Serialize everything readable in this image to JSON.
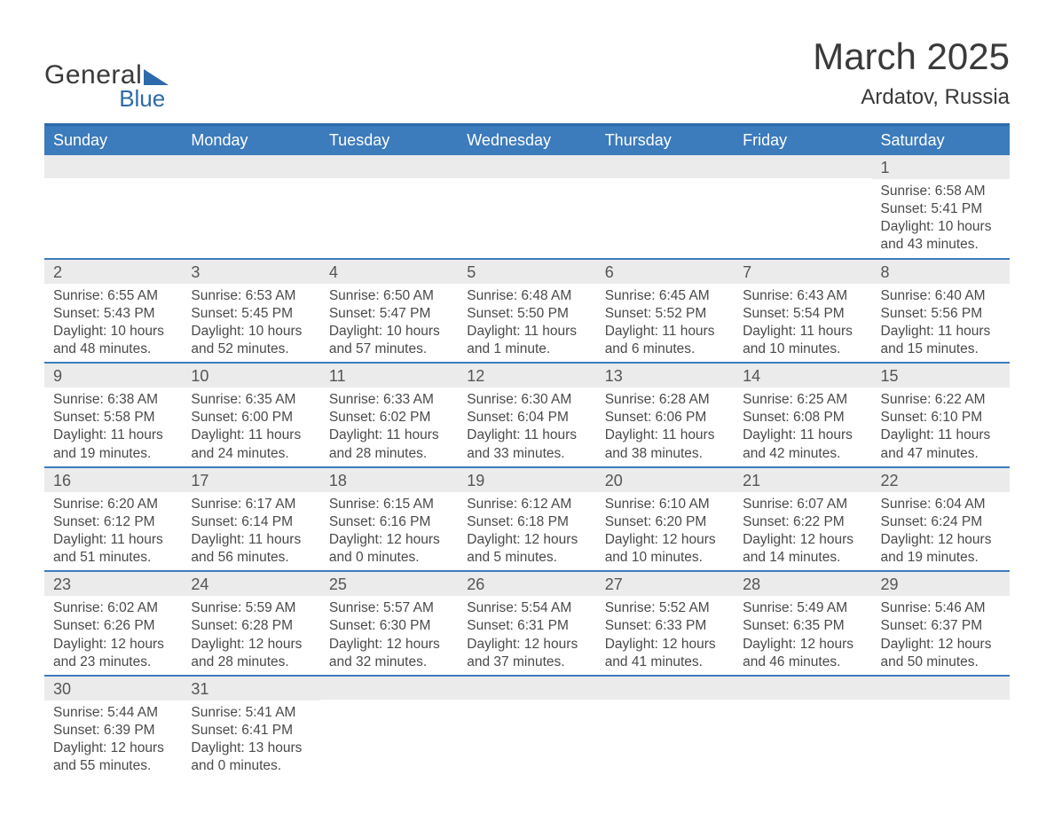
{
  "logo": {
    "text_general": "General",
    "text_blue": "Blue",
    "general_color": "#3a3a3a",
    "blue_color": "#2d6aab",
    "triangle_color": "#2d6aab"
  },
  "title": {
    "month_year": "March 2025",
    "location": "Ardatov, Russia",
    "title_fontsize": 42,
    "location_fontsize": 24,
    "color": "#3a3a3a"
  },
  "colors": {
    "header_bar": "#3c7bbc",
    "top_border": "#2d6aab",
    "row_divider": "#3c7bbc",
    "daynum_bg": "#ebebeb",
    "text": "#4a4a4a",
    "weekday_text": "#ffffff",
    "background": "#ffffff"
  },
  "weekdays": [
    "Sunday",
    "Monday",
    "Tuesday",
    "Wednesday",
    "Thursday",
    "Friday",
    "Saturday"
  ],
  "weeks": [
    [
      null,
      null,
      null,
      null,
      null,
      null,
      {
        "n": "1",
        "sunrise": "Sunrise: 6:58 AM",
        "sunset": "Sunset: 5:41 PM",
        "daylight": "Daylight: 10 hours and 43 minutes."
      }
    ],
    [
      {
        "n": "2",
        "sunrise": "Sunrise: 6:55 AM",
        "sunset": "Sunset: 5:43 PM",
        "daylight": "Daylight: 10 hours and 48 minutes."
      },
      {
        "n": "3",
        "sunrise": "Sunrise: 6:53 AM",
        "sunset": "Sunset: 5:45 PM",
        "daylight": "Daylight: 10 hours and 52 minutes."
      },
      {
        "n": "4",
        "sunrise": "Sunrise: 6:50 AM",
        "sunset": "Sunset: 5:47 PM",
        "daylight": "Daylight: 10 hours and 57 minutes."
      },
      {
        "n": "5",
        "sunrise": "Sunrise: 6:48 AM",
        "sunset": "Sunset: 5:50 PM",
        "daylight": "Daylight: 11 hours and 1 minute."
      },
      {
        "n": "6",
        "sunrise": "Sunrise: 6:45 AM",
        "sunset": "Sunset: 5:52 PM",
        "daylight": "Daylight: 11 hours and 6 minutes."
      },
      {
        "n": "7",
        "sunrise": "Sunrise: 6:43 AM",
        "sunset": "Sunset: 5:54 PM",
        "daylight": "Daylight: 11 hours and 10 minutes."
      },
      {
        "n": "8",
        "sunrise": "Sunrise: 6:40 AM",
        "sunset": "Sunset: 5:56 PM",
        "daylight": "Daylight: 11 hours and 15 minutes."
      }
    ],
    [
      {
        "n": "9",
        "sunrise": "Sunrise: 6:38 AM",
        "sunset": "Sunset: 5:58 PM",
        "daylight": "Daylight: 11 hours and 19 minutes."
      },
      {
        "n": "10",
        "sunrise": "Sunrise: 6:35 AM",
        "sunset": "Sunset: 6:00 PM",
        "daylight": "Daylight: 11 hours and 24 minutes."
      },
      {
        "n": "11",
        "sunrise": "Sunrise: 6:33 AM",
        "sunset": "Sunset: 6:02 PM",
        "daylight": "Daylight: 11 hours and 28 minutes."
      },
      {
        "n": "12",
        "sunrise": "Sunrise: 6:30 AM",
        "sunset": "Sunset: 6:04 PM",
        "daylight": "Daylight: 11 hours and 33 minutes."
      },
      {
        "n": "13",
        "sunrise": "Sunrise: 6:28 AM",
        "sunset": "Sunset: 6:06 PM",
        "daylight": "Daylight: 11 hours and 38 minutes."
      },
      {
        "n": "14",
        "sunrise": "Sunrise: 6:25 AM",
        "sunset": "Sunset: 6:08 PM",
        "daylight": "Daylight: 11 hours and 42 minutes."
      },
      {
        "n": "15",
        "sunrise": "Sunrise: 6:22 AM",
        "sunset": "Sunset: 6:10 PM",
        "daylight": "Daylight: 11 hours and 47 minutes."
      }
    ],
    [
      {
        "n": "16",
        "sunrise": "Sunrise: 6:20 AM",
        "sunset": "Sunset: 6:12 PM",
        "daylight": "Daylight: 11 hours and 51 minutes."
      },
      {
        "n": "17",
        "sunrise": "Sunrise: 6:17 AM",
        "sunset": "Sunset: 6:14 PM",
        "daylight": "Daylight: 11 hours and 56 minutes."
      },
      {
        "n": "18",
        "sunrise": "Sunrise: 6:15 AM",
        "sunset": "Sunset: 6:16 PM",
        "daylight": "Daylight: 12 hours and 0 minutes."
      },
      {
        "n": "19",
        "sunrise": "Sunrise: 6:12 AM",
        "sunset": "Sunset: 6:18 PM",
        "daylight": "Daylight: 12 hours and 5 minutes."
      },
      {
        "n": "20",
        "sunrise": "Sunrise: 6:10 AM",
        "sunset": "Sunset: 6:20 PM",
        "daylight": "Daylight: 12 hours and 10 minutes."
      },
      {
        "n": "21",
        "sunrise": "Sunrise: 6:07 AM",
        "sunset": "Sunset: 6:22 PM",
        "daylight": "Daylight: 12 hours and 14 minutes."
      },
      {
        "n": "22",
        "sunrise": "Sunrise: 6:04 AM",
        "sunset": "Sunset: 6:24 PM",
        "daylight": "Daylight: 12 hours and 19 minutes."
      }
    ],
    [
      {
        "n": "23",
        "sunrise": "Sunrise: 6:02 AM",
        "sunset": "Sunset: 6:26 PM",
        "daylight": "Daylight: 12 hours and 23 minutes."
      },
      {
        "n": "24",
        "sunrise": "Sunrise: 5:59 AM",
        "sunset": "Sunset: 6:28 PM",
        "daylight": "Daylight: 12 hours and 28 minutes."
      },
      {
        "n": "25",
        "sunrise": "Sunrise: 5:57 AM",
        "sunset": "Sunset: 6:30 PM",
        "daylight": "Daylight: 12 hours and 32 minutes."
      },
      {
        "n": "26",
        "sunrise": "Sunrise: 5:54 AM",
        "sunset": "Sunset: 6:31 PM",
        "daylight": "Daylight: 12 hours and 37 minutes."
      },
      {
        "n": "27",
        "sunrise": "Sunrise: 5:52 AM",
        "sunset": "Sunset: 6:33 PM",
        "daylight": "Daylight: 12 hours and 41 minutes."
      },
      {
        "n": "28",
        "sunrise": "Sunrise: 5:49 AM",
        "sunset": "Sunset: 6:35 PM",
        "daylight": "Daylight: 12 hours and 46 minutes."
      },
      {
        "n": "29",
        "sunrise": "Sunrise: 5:46 AM",
        "sunset": "Sunset: 6:37 PM",
        "daylight": "Daylight: 12 hours and 50 minutes."
      }
    ],
    [
      {
        "n": "30",
        "sunrise": "Sunrise: 5:44 AM",
        "sunset": "Sunset: 6:39 PM",
        "daylight": "Daylight: 12 hours and 55 minutes."
      },
      {
        "n": "31",
        "sunrise": "Sunrise: 5:41 AM",
        "sunset": "Sunset: 6:41 PM",
        "daylight": "Daylight: 13 hours and 0 minutes."
      },
      null,
      null,
      null,
      null,
      null
    ]
  ]
}
